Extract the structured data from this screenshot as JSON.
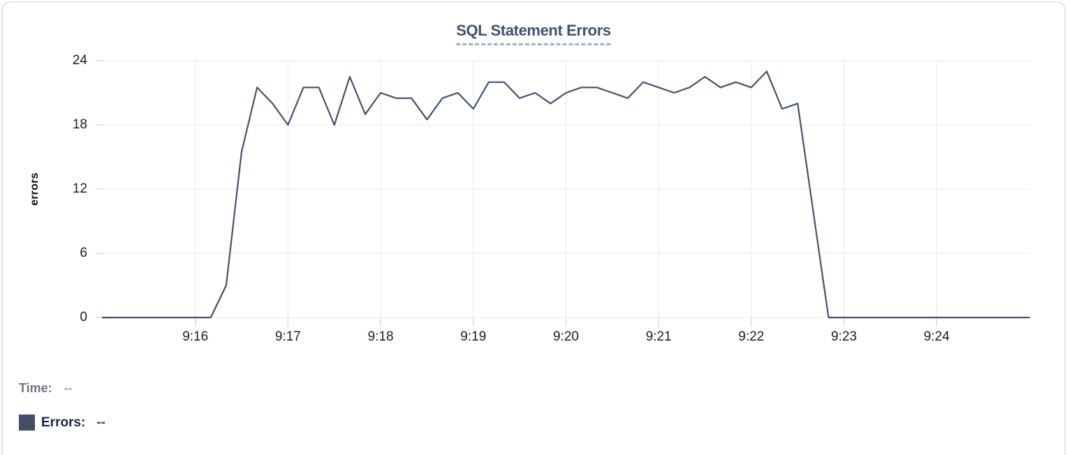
{
  "card": {
    "title": "SQL Statement Errors"
  },
  "tooltip_readout": {
    "time_label": "Time:",
    "time_value": "--",
    "errors_label": "Errors:",
    "errors_value": "--"
  },
  "colors": {
    "line": "#42526e",
    "title": "#42526e",
    "title_underline": "#a6aebd",
    "grid": "#e8e9eb",
    "tick_stub": "#d8dbe0",
    "axis_text": "#1d1d1f",
    "swatch": "#415068",
    "card_border": "#e3e5e9",
    "time_label_text": "#6f7887",
    "errors_label_text": "#1b2448"
  },
  "chart_data": {
    "type": "line",
    "title": "SQL Statement Errors",
    "xlabel": "",
    "ylabel": "errors",
    "ylim": [
      0,
      24
    ],
    "y_ticks": [
      0,
      6,
      12,
      18,
      24
    ],
    "x_ticks": [
      "9:16",
      "9:17",
      "9:18",
      "9:19",
      "9:20",
      "9:21",
      "9:22",
      "9:23",
      "9:24"
    ],
    "x_domain": [
      "9:15:00",
      "9:25:00"
    ],
    "sample_interval_seconds": 10,
    "grid": true,
    "legend_position": "bottom-left",
    "series": [
      {
        "name": "Errors",
        "color": "#42526e",
        "points": [
          [
            "9:15:00",
            0
          ],
          [
            "9:15:10",
            0
          ],
          [
            "9:15:20",
            0
          ],
          [
            "9:15:30",
            0
          ],
          [
            "9:15:40",
            0
          ],
          [
            "9:15:50",
            0
          ],
          [
            "9:16:00",
            0
          ],
          [
            "9:16:10",
            0
          ],
          [
            "9:16:20",
            3
          ],
          [
            "9:16:30",
            15.5
          ],
          [
            "9:16:40",
            21.5
          ],
          [
            "9:16:50",
            20
          ],
          [
            "9:17:00",
            18
          ],
          [
            "9:17:10",
            21.5
          ],
          [
            "9:17:20",
            21.5
          ],
          [
            "9:17:30",
            18
          ],
          [
            "9:17:40",
            22.5
          ],
          [
            "9:17:50",
            19
          ],
          [
            "9:18:00",
            21
          ],
          [
            "9:18:10",
            20.5
          ],
          [
            "9:18:20",
            20.5
          ],
          [
            "9:18:30",
            18.5
          ],
          [
            "9:18:40",
            20.5
          ],
          [
            "9:18:50",
            21
          ],
          [
            "9:19:00",
            19.5
          ],
          [
            "9:19:10",
            22
          ],
          [
            "9:19:20",
            22
          ],
          [
            "9:19:30",
            20.5
          ],
          [
            "9:19:40",
            21
          ],
          [
            "9:19:50",
            20
          ],
          [
            "9:20:00",
            21
          ],
          [
            "9:20:10",
            21.5
          ],
          [
            "9:20:20",
            21.5
          ],
          [
            "9:20:30",
            21
          ],
          [
            "9:20:40",
            20.5
          ],
          [
            "9:20:50",
            22
          ],
          [
            "9:21:00",
            21.5
          ],
          [
            "9:21:10",
            21
          ],
          [
            "9:21:20",
            21.5
          ],
          [
            "9:21:30",
            22.5
          ],
          [
            "9:21:40",
            21.5
          ],
          [
            "9:21:50",
            22
          ],
          [
            "9:22:00",
            21.5
          ],
          [
            "9:22:10",
            23
          ],
          [
            "9:22:20",
            19.5
          ],
          [
            "9:22:30",
            20
          ],
          [
            "9:22:40",
            10
          ],
          [
            "9:22:50",
            0
          ],
          [
            "9:23:00",
            0
          ],
          [
            "9:23:10",
            0
          ],
          [
            "9:23:20",
            0
          ],
          [
            "9:23:30",
            0
          ],
          [
            "9:23:40",
            0
          ],
          [
            "9:23:50",
            0
          ],
          [
            "9:24:00",
            0
          ],
          [
            "9:24:10",
            0
          ],
          [
            "9:24:20",
            0
          ],
          [
            "9:24:30",
            0
          ],
          [
            "9:24:40",
            0
          ],
          [
            "9:24:50",
            0
          ],
          [
            "9:25:00",
            0
          ]
        ]
      }
    ]
  }
}
